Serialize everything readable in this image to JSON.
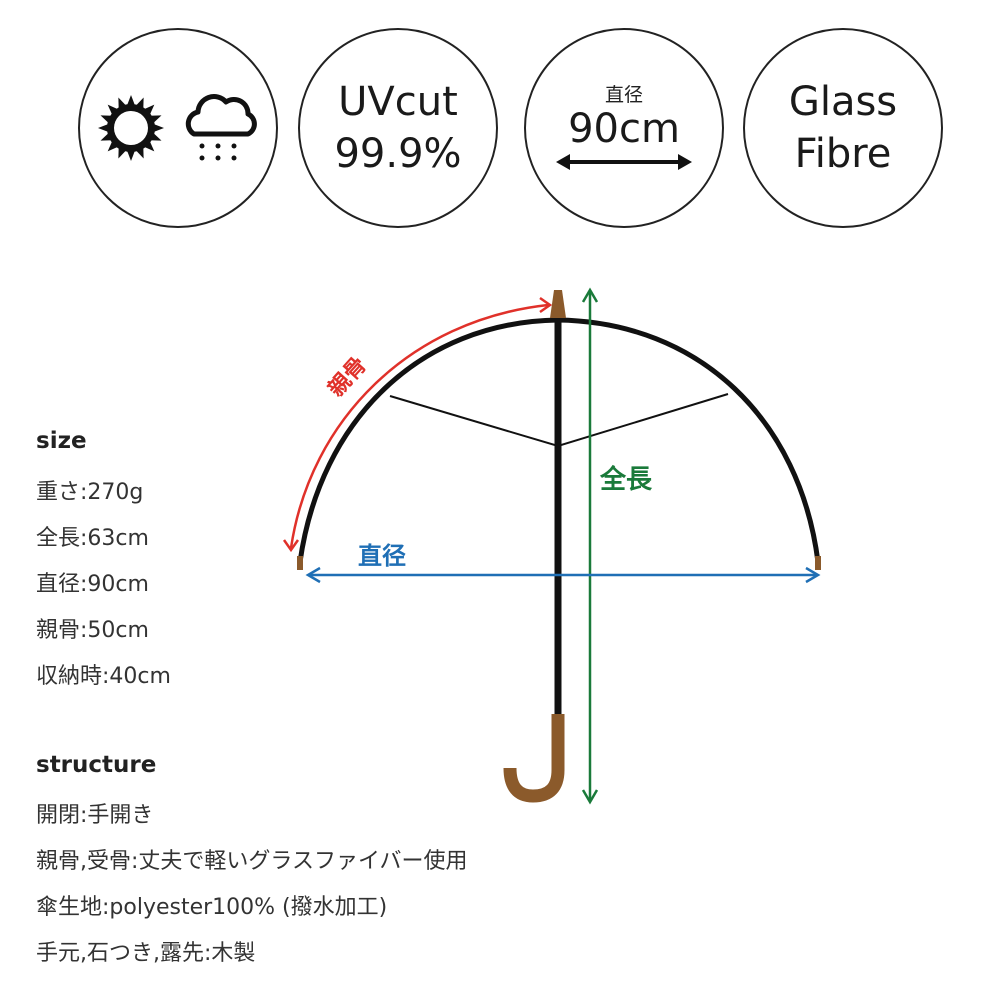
{
  "badges": {
    "weather": {
      "icons": [
        "sun-icon",
        "rain-cloud-icon"
      ]
    },
    "uv": {
      "line1": "UVcut",
      "line2": "99.9%"
    },
    "diameter": {
      "label": "直径",
      "value": "90cm",
      "icon": "double-arrow-icon"
    },
    "material": {
      "line1": "Glass",
      "line2": "Fibre"
    }
  },
  "diagram": {
    "rib_label": "親骨",
    "diameter_label": "直径",
    "length_label": "全長",
    "colors": {
      "rib": "#e0312a",
      "diameter": "#1f6fb5",
      "length": "#1a7a3a",
      "wood": "#8b5a2b",
      "frame": "#111111"
    }
  },
  "size": {
    "heading": "size",
    "items": [
      "重さ:270g",
      "全長:63cm",
      "直径:90cm",
      "親骨:50cm",
      "収納時:40cm"
    ]
  },
  "structure": {
    "heading": "structure",
    "items": [
      "開閉:手開き",
      "親骨,受骨:丈夫で軽いグラスファイバー使用",
      "傘生地:polyester100% (撥水加工)",
      "手元,石つき,露先:木製"
    ]
  }
}
